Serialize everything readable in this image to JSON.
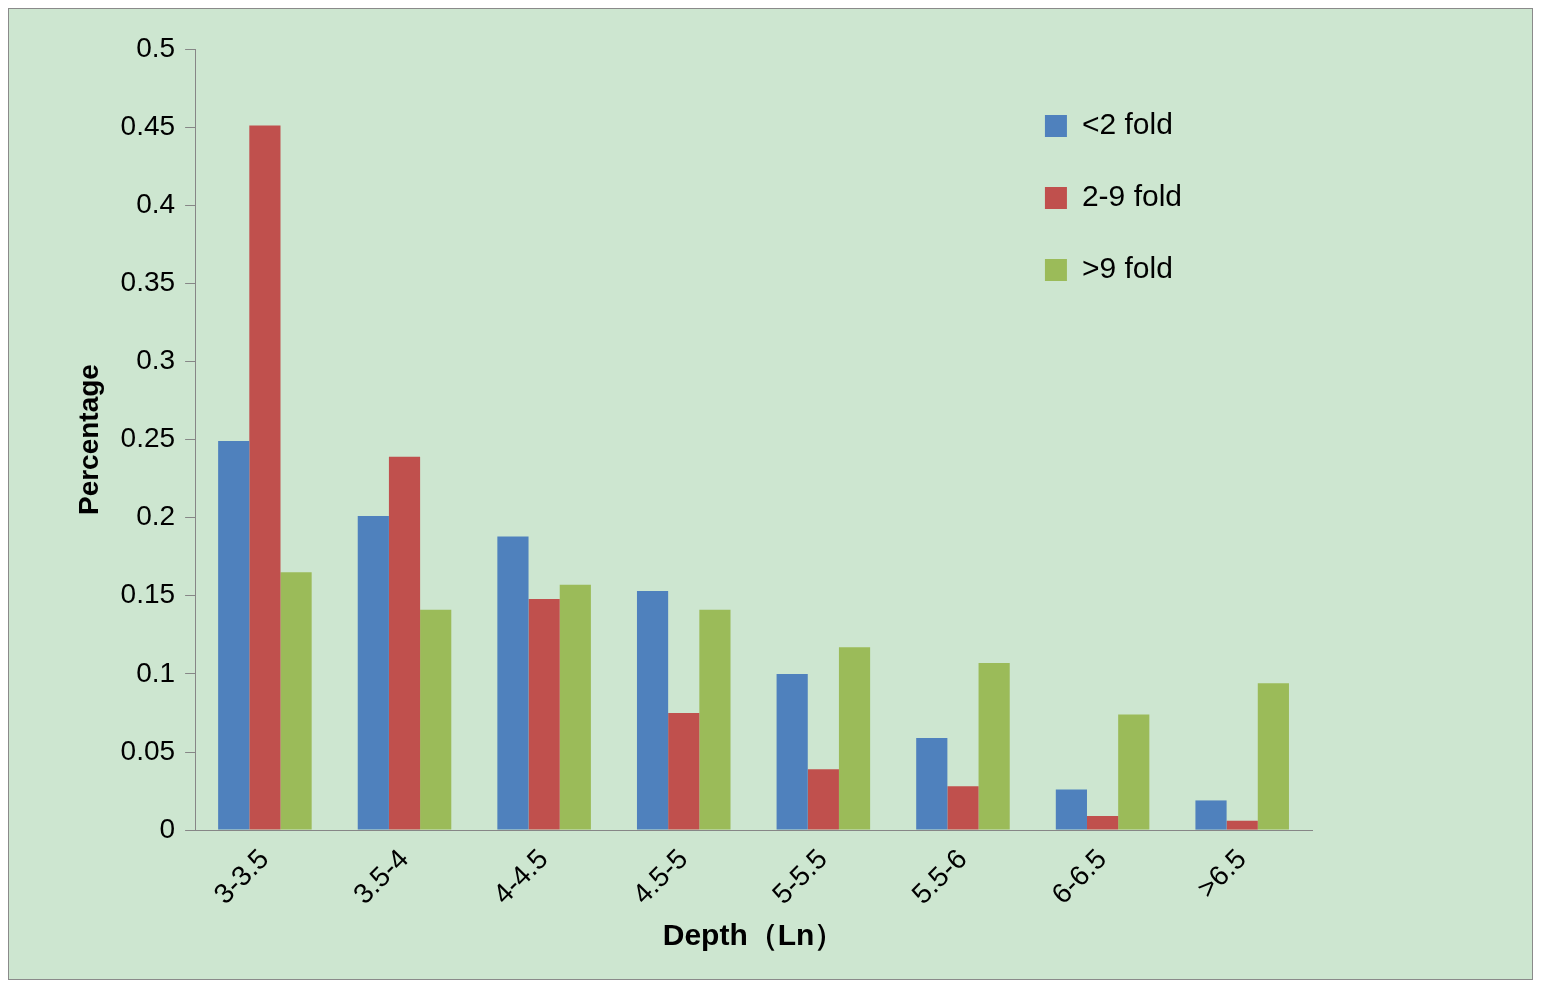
{
  "chart_data": {
    "type": "bar",
    "xlabel": "Depth（Ln）",
    "ylabel": "Percentage",
    "categories": [
      "3-3.5",
      "3.5-4",
      "4-4.5",
      "4.5-5",
      "5-5.5",
      "5.5-6",
      "6-6.5",
      ">6.5"
    ],
    "series": [
      {
        "name": "<2 fold",
        "color": "#4f81bd",
        "values": [
          0.249,
          0.201,
          0.188,
          0.153,
          0.1,
          0.059,
          0.026,
          0.019
        ]
      },
      {
        "name": "2-9 fold",
        "color": "#c0504d",
        "values": [
          0.451,
          0.239,
          0.148,
          0.075,
          0.039,
          0.028,
          0.009,
          0.006
        ]
      },
      {
        "name": ">9 fold",
        "color": "#9bbb59",
        "values": [
          0.165,
          0.141,
          0.157,
          0.141,
          0.117,
          0.107,
          0.074,
          0.094
        ]
      }
    ],
    "ylim": [
      0,
      0.5
    ],
    "yticks": [
      0,
      0.05,
      0.1,
      0.15,
      0.2,
      0.25,
      0.3,
      0.35,
      0.4,
      0.45,
      0.5
    ],
    "grid": false,
    "legend": "top right"
  }
}
